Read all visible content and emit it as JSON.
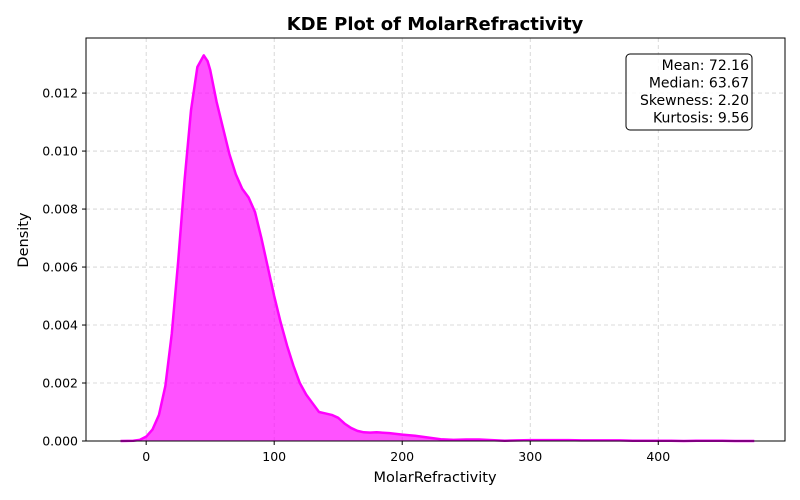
{
  "chart_data": {
    "type": "area",
    "title": "KDE Plot of MolarRefractivity",
    "xlabel": "MolarRefractivity",
    "ylabel": "Density",
    "xlim": [
      -47,
      499
    ],
    "ylim": [
      0,
      0.0139
    ],
    "xticks": [
      0,
      100,
      200,
      300,
      400
    ],
    "yticks": [
      0.0,
      0.002,
      0.004,
      0.006,
      0.008,
      0.01,
      0.012
    ],
    "ytick_labels": [
      "0.000",
      "0.002",
      "0.004",
      "0.006",
      "0.008",
      "0.010",
      "0.012"
    ],
    "grid": true,
    "color": "#ff00ff",
    "series": [
      {
        "x": [
          -20,
          -10,
          -5,
          0,
          5,
          10,
          15,
          20,
          25,
          30,
          35,
          40,
          45,
          48,
          50,
          55,
          60,
          65,
          70,
          75,
          80,
          85,
          90,
          95,
          100,
          105,
          110,
          115,
          120,
          125,
          130,
          135,
          140,
          145,
          150,
          155,
          160,
          165,
          170,
          175,
          180,
          190,
          200,
          210,
          220,
          230,
          240,
          250,
          260,
          270,
          280,
          290,
          300,
          310,
          320,
          330,
          340,
          350,
          360,
          370,
          380,
          390,
          400,
          410,
          420,
          430,
          440,
          450,
          460,
          470,
          475
        ],
        "y": [
          0.0,
          1e-05,
          4e-05,
          0.00015,
          0.0004,
          0.0009,
          0.0019,
          0.0037,
          0.0062,
          0.009,
          0.0114,
          0.0129,
          0.0133,
          0.0131,
          0.0128,
          0.0117,
          0.0108,
          0.0099,
          0.0092,
          0.0087,
          0.0084,
          0.0079,
          0.007,
          0.006,
          0.005,
          0.0041,
          0.0033,
          0.0026,
          0.002,
          0.0016,
          0.0013,
          0.001,
          0.00095,
          0.0009,
          0.0008,
          0.0006,
          0.00045,
          0.00035,
          0.0003,
          0.00029,
          0.0003,
          0.00027,
          0.00022,
          0.00018,
          0.00012,
          6e-05,
          4e-05,
          5e-05,
          5e-05,
          3e-05,
          1e-05,
          2e-05,
          3e-05,
          3e-05,
          3e-05,
          3e-05,
          2e-05,
          2e-05,
          2e-05,
          2e-05,
          1e-05,
          1e-05,
          1e-05,
          1e-05,
          0.0,
          1e-05,
          1e-05,
          1e-05,
          0.0,
          0.0,
          0.0
        ]
      }
    ],
    "stats": [
      {
        "label": "Mean",
        "value": "72.16"
      },
      {
        "label": "Median",
        "value": "63.67"
      },
      {
        "label": "Skewness",
        "value": "2.20"
      },
      {
        "label": "Kurtosis",
        "value": "9.56"
      }
    ],
    "stats_placement": "top-right"
  }
}
